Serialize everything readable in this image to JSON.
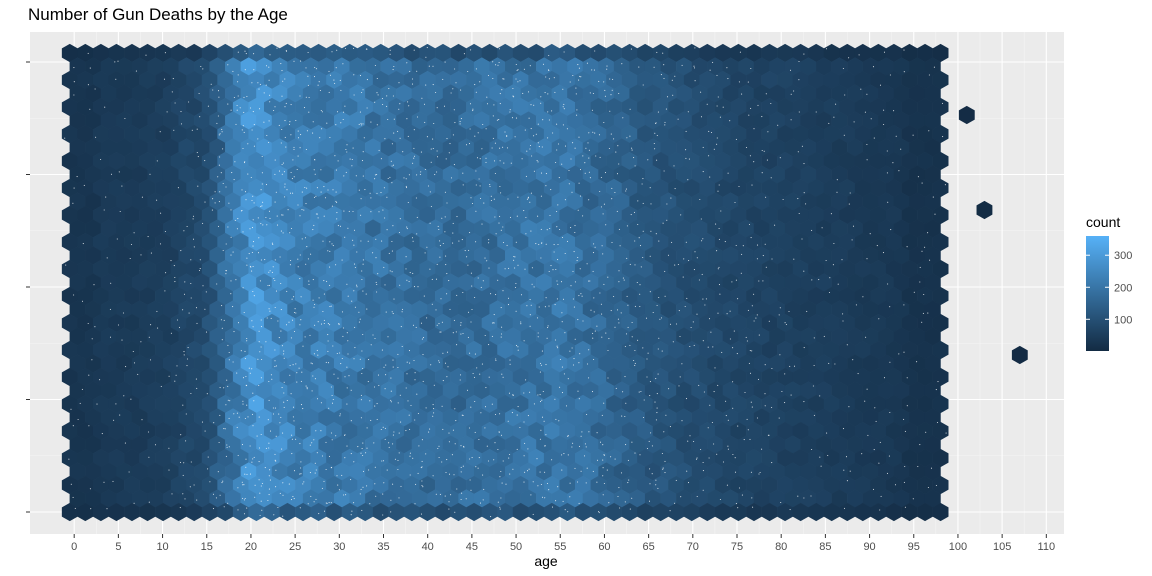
{
  "chart_data": {
    "type": "heatmap",
    "subtype": "hexbin",
    "title": "Number of Gun Deaths by the Age",
    "xlabel": "age",
    "ylabel": "",
    "xlim": [
      -5,
      112
    ],
    "x_ticks": [
      0,
      5,
      10,
      15,
      20,
      25,
      30,
      35,
      40,
      45,
      50,
      55,
      60,
      65,
      70,
      75,
      80,
      85,
      90,
      95,
      100,
      105,
      110
    ],
    "y_tick_count": 5,
    "y_tick_labels_shown": false,
    "fill_label": "count",
    "fill_range": [
      1,
      360
    ],
    "fill_low_color": "#132B43",
    "fill_high_color": "#56B1F7",
    "legend_ticks": [
      100,
      200,
      300
    ],
    "legend_position": "right",
    "grid": true,
    "panel_background": "#EBEBEB",
    "age_profile": {
      "x": [
        0,
        5,
        10,
        15,
        20,
        25,
        30,
        35,
        40,
        45,
        50,
        55,
        60,
        65,
        70,
        75,
        80,
        85,
        90,
        95
      ],
      "approx_count": [
        40,
        40,
        50,
        90,
        280,
        230,
        210,
        190,
        170,
        175,
        190,
        200,
        160,
        120,
        90,
        70,
        60,
        50,
        40,
        30
      ]
    },
    "outlier_bins": [
      {
        "age": 101,
        "count": 5
      },
      {
        "age": 103,
        "count": 3
      },
      {
        "age": 107,
        "count": 2
      }
    ]
  }
}
